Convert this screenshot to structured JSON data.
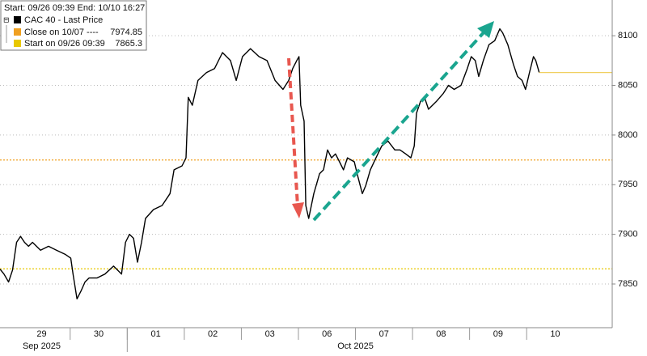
{
  "chart_data": {
    "type": "line",
    "legend_title": "Start: 09/26 09:39 End: 10/10 16:27",
    "series": [
      {
        "name": "CAC 40 - Last Price",
        "color": "#000000",
        "x": [
          -0.23,
          -0.16,
          -0.08,
          -0.01,
          0.06,
          0.13,
          0.2,
          0.27,
          0.34,
          0.48,
          0.62,
          0.76,
          0.91,
          1.01,
          1.05,
          1.12,
          1.19,
          1.26,
          1.33,
          1.47,
          1.61,
          1.76,
          1.83,
          1.9,
          1.97,
          2.04,
          2.11,
          2.18,
          2.25,
          2.32,
          2.46,
          2.61,
          2.75,
          2.82,
          2.96,
          3.03,
          3.07,
          3.14,
          3.24,
          3.39,
          3.53,
          3.67,
          3.81,
          3.91,
          4.02,
          4.16,
          4.31,
          4.45,
          4.59,
          4.73,
          4.83,
          4.9,
          4.97,
          5.01,
          5.04,
          5.1,
          5.13,
          5.18,
          5.27,
          5.37,
          5.44,
          5.51,
          5.58,
          5.65,
          5.72,
          5.79,
          5.86,
          5.98,
          6.03,
          6.12,
          6.18,
          6.26,
          6.36,
          6.46,
          6.57,
          6.69,
          6.78,
          6.88,
          6.97,
          7.03,
          7.07,
          7.14,
          7.21,
          7.28,
          7.42,
          7.54,
          7.63,
          7.73,
          7.85,
          7.96,
          8.03,
          8.1,
          8.16,
          8.24,
          8.34,
          8.44,
          8.53,
          8.58,
          8.67,
          8.77,
          8.84,
          8.92,
          8.98,
          9.05,
          9.12,
          9.16,
          9.22
        ],
        "values": [
          7865,
          7860,
          7852,
          7864,
          7892,
          7898,
          7892,
          7888,
          7892,
          7884,
          7888,
          7884,
          7880,
          7876,
          7860,
          7835,
          7843,
          7852,
          7856,
          7856,
          7860,
          7868,
          7864,
          7860,
          7892,
          7900,
          7896,
          7872,
          7892,
          7916,
          7925,
          7929,
          7941,
          7965,
          7969,
          7977,
          8038,
          8030,
          8055,
          8063,
          8067,
          8083,
          8075,
          8055,
          8079,
          8087,
          8079,
          8075,
          8055,
          8046,
          8055,
          8067,
          8075,
          8079,
          8030,
          8014,
          7929,
          7916,
          7941,
          7961,
          7965,
          7985,
          7977,
          7981,
          7973,
          7965,
          7977,
          7973,
          7961,
          7941,
          7949,
          7965,
          7977,
          7989,
          7994,
          7985,
          7985,
          7981,
          7977,
          7989,
          8022,
          8034,
          8038,
          8026,
          8034,
          8042,
          8050,
          8046,
          8050,
          8067,
          8079,
          8075,
          8059,
          8075,
          8091,
          8095,
          8107,
          8103,
          8091,
          8071,
          8059,
          8055,
          8046,
          8063,
          8079,
          8075,
          8063
        ]
      }
    ],
    "reference_lines": [
      {
        "name": "Close on 10/07 ----",
        "value": 7974.85,
        "color": "#f0a020"
      },
      {
        "name": "Start on 09/26 09:39",
        "value": 7865.3,
        "color": "#e8c800"
      }
    ],
    "xlim": [
      -0.23,
      10.5
    ],
    "xticks": [
      {
        "value": 0.5,
        "label": "29"
      },
      {
        "value": 1.5,
        "label": "30"
      },
      {
        "value": 2.5,
        "label": "01"
      },
      {
        "value": 3.5,
        "label": "02"
      },
      {
        "value": 4.5,
        "label": "03"
      },
      {
        "value": 5.5,
        "label": "06"
      },
      {
        "value": 6.5,
        "label": "07"
      },
      {
        "value": 7.5,
        "label": "08"
      },
      {
        "value": 8.5,
        "label": "09"
      },
      {
        "value": 9.5,
        "label": "10"
      }
    ],
    "xmonths": [
      {
        "value": 0.5,
        "label": "Sep 2025"
      },
      {
        "value": 6.0,
        "label": "Oct 2025"
      }
    ],
    "ylim": [
      7806,
      8136
    ],
    "yticks": [
      7850,
      7900,
      7950,
      8000,
      8050,
      8100
    ],
    "grid": true
  }
}
